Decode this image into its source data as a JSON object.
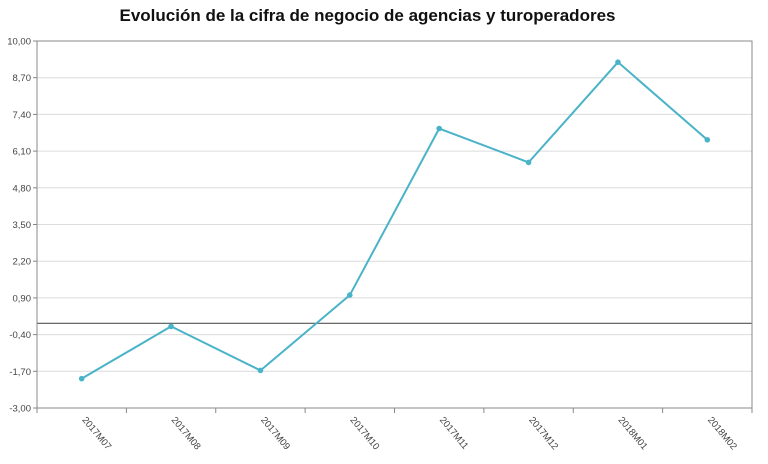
{
  "chart_data": {
    "type": "line",
    "title": "Evolución de la cifra de negocio de agencias y turoperadores",
    "xlabel": "",
    "ylabel": "",
    "categories": [
      "2017M07",
      "2017M08",
      "2017M09",
      "2017M10",
      "2017M11",
      "2017M12",
      "2018M01",
      "2018M02"
    ],
    "series": [
      {
        "values": [
          -1.96,
          -0.11,
          -1.67,
          1.0,
          6.9,
          5.7,
          9.25,
          6.5
        ],
        "color": "#4ab3c8"
      }
    ],
    "y_ticks": [
      "10,00",
      "8,70",
      "7,40",
      "6,10",
      "4,80",
      "3,50",
      "2,20",
      "0,90",
      "-0,40",
      "-1,70",
      "-3,00"
    ],
    "ylim": [
      -3.0,
      10.0
    ],
    "reference_line": 0,
    "grid": true,
    "legend": "none"
  }
}
